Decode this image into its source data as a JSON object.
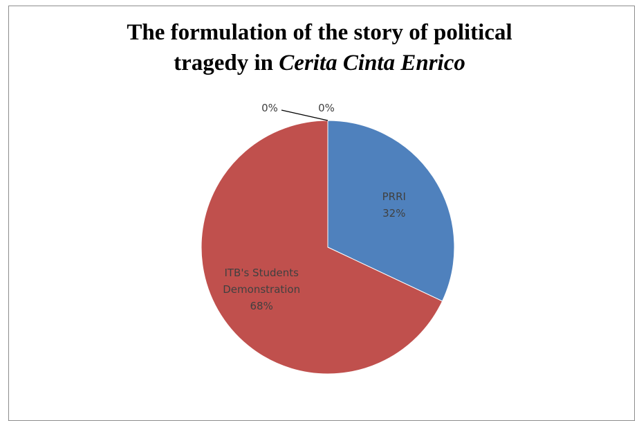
{
  "chart_data": {
    "type": "pie",
    "title_line1": "The formulation of the story of political",
    "title_line2_plain": "tragedy in ",
    "title_line2_italic": "Cerita Cinta Enrico",
    "slices": [
      {
        "name": "PRRI",
        "value": 32,
        "label": "32%",
        "color": "#4f81bd"
      },
      {
        "name": "ITB's Students Demonstration",
        "name_lines": [
          "ITB's Students",
          "Demonstration"
        ],
        "value": 68,
        "label": "68%",
        "color": "#c0504d"
      },
      {
        "name": "",
        "value": 0,
        "label": "0%",
        "color": "#9bbb59"
      },
      {
        "name": "",
        "value": 0,
        "label": "0%",
        "color": "#8064a2"
      }
    ],
    "legend": "none"
  }
}
